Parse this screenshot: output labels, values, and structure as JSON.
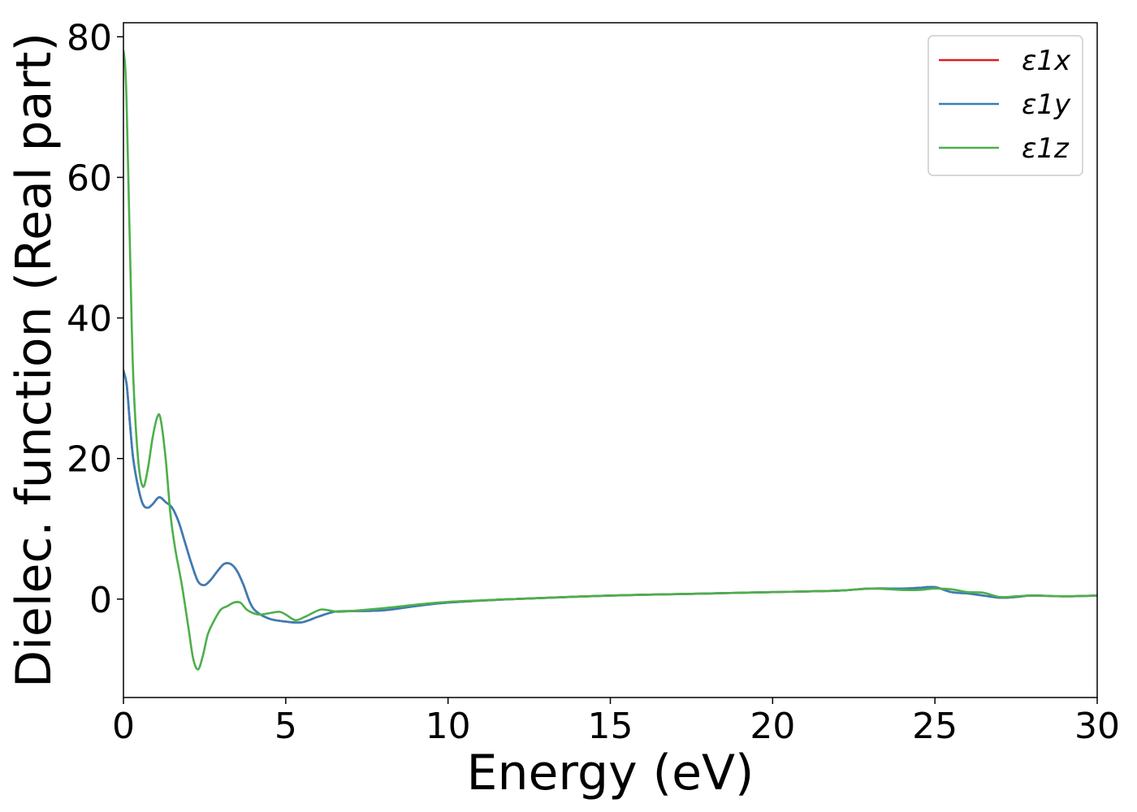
{
  "chart_data": {
    "type": "line",
    "title": "",
    "xlabel": "Energy (eV)",
    "ylabel": "Dielec. function (Real part)",
    "xlim": [
      0,
      30
    ],
    "ylim": [
      -14,
      82
    ],
    "xticks": [
      "0",
      "5",
      "10",
      "15",
      "20",
      "25",
      "30"
    ],
    "yticks": [
      "0",
      "20",
      "40",
      "60",
      "80"
    ],
    "grid": false,
    "legend_position": "top-right",
    "series": [
      {
        "name": "ε1x",
        "color": "#e41a1c",
        "x": [
          0,
          0.1,
          0.2,
          0.3,
          0.45,
          0.6,
          0.75,
          0.9,
          1.1,
          1.3,
          1.5,
          1.7,
          1.9,
          2.1,
          2.3,
          2.5,
          2.7,
          2.9,
          3.1,
          3.3,
          3.5,
          3.7,
          3.9,
          4.1,
          4.5,
          5.0,
          5.5,
          6.0,
          6.5,
          7.0,
          8.0,
          9.0,
          10.0,
          12.0,
          15.0,
          18.0,
          20.0,
          22.0,
          23.0,
          24.0,
          24.5,
          25.0,
          25.5,
          26.0,
          26.5,
          27.0,
          27.5,
          28.0,
          29.0,
          30.0
        ],
        "y": [
          32.5,
          30.5,
          25,
          20,
          16,
          13.5,
          13,
          13.5,
          14.5,
          13.8,
          13,
          11,
          8,
          5,
          2.5,
          2,
          2.8,
          4,
          5,
          5,
          4,
          2,
          -0.5,
          -1.8,
          -2.8,
          -3.2,
          -3.3,
          -2.5,
          -1.8,
          -1.7,
          -1.6,
          -1,
          -0.5,
          0,
          0.5,
          0.8,
          1.0,
          1.2,
          1.5,
          1.5,
          1.6,
          1.7,
          1.0,
          0.8,
          0.5,
          0.2,
          0.3,
          0.5,
          0.4,
          0.5
        ]
      },
      {
        "name": "ε1y",
        "color": "#377eb8",
        "x": [
          0,
          0.1,
          0.2,
          0.3,
          0.45,
          0.6,
          0.75,
          0.9,
          1.1,
          1.3,
          1.5,
          1.7,
          1.9,
          2.1,
          2.3,
          2.5,
          2.7,
          2.9,
          3.1,
          3.3,
          3.5,
          3.7,
          3.9,
          4.1,
          4.5,
          5.0,
          5.5,
          6.0,
          6.5,
          7.0,
          8.0,
          9.0,
          10.0,
          12.0,
          15.0,
          18.0,
          20.0,
          22.0,
          23.0,
          24.0,
          24.5,
          25.0,
          25.5,
          26.0,
          26.5,
          27.0,
          27.5,
          28.0,
          29.0,
          30.0
        ],
        "y": [
          32.5,
          30.5,
          25,
          20,
          16,
          13.5,
          13,
          13.5,
          14.5,
          13.8,
          13,
          11,
          8,
          5,
          2.5,
          2,
          2.8,
          4,
          5,
          5,
          4,
          2,
          -0.5,
          -1.8,
          -2.8,
          -3.2,
          -3.3,
          -2.5,
          -1.8,
          -1.7,
          -1.6,
          -1,
          -0.5,
          0,
          0.5,
          0.8,
          1.0,
          1.2,
          1.5,
          1.5,
          1.6,
          1.7,
          1.0,
          0.8,
          0.5,
          0.2,
          0.3,
          0.5,
          0.4,
          0.5
        ]
      },
      {
        "name": "ε1z",
        "color": "#4daf4a",
        "x": [
          0,
          0.05,
          0.1,
          0.2,
          0.3,
          0.45,
          0.6,
          0.75,
          0.9,
          1.05,
          1.15,
          1.3,
          1.45,
          1.6,
          1.8,
          2.0,
          2.15,
          2.3,
          2.45,
          2.6,
          2.8,
          3.0,
          3.2,
          3.4,
          3.6,
          3.8,
          4.0,
          4.2,
          4.5,
          4.8,
          5.0,
          5.3,
          5.6,
          6.0,
          6.2,
          6.6,
          7.0,
          8.0,
          9.0,
          10.0,
          12.0,
          15.0,
          18.0,
          20.0,
          22.0,
          23.0,
          24.0,
          24.5,
          25.0,
          25.5,
          26.0,
          26.5,
          27.0,
          27.5,
          28.0,
          29.0,
          30.0
        ],
        "y": [
          78,
          76,
          70,
          50,
          32,
          20,
          16,
          18.5,
          23,
          26,
          25.5,
          20,
          12,
          7,
          2,
          -4,
          -8.5,
          -10,
          -8,
          -5,
          -3,
          -1.5,
          -1,
          -0.5,
          -0.5,
          -1.5,
          -2,
          -2.2,
          -2,
          -1.8,
          -2.2,
          -3,
          -2.5,
          -1.6,
          -1.5,
          -1.8,
          -1.7,
          -1.3,
          -0.8,
          -0.4,
          0,
          0.5,
          0.8,
          1.0,
          1.2,
          1.5,
          1.3,
          1.3,
          1.5,
          1.4,
          1.0,
          0.9,
          0.3,
          0.4,
          0.5,
          0.4,
          0.5
        ]
      }
    ]
  }
}
